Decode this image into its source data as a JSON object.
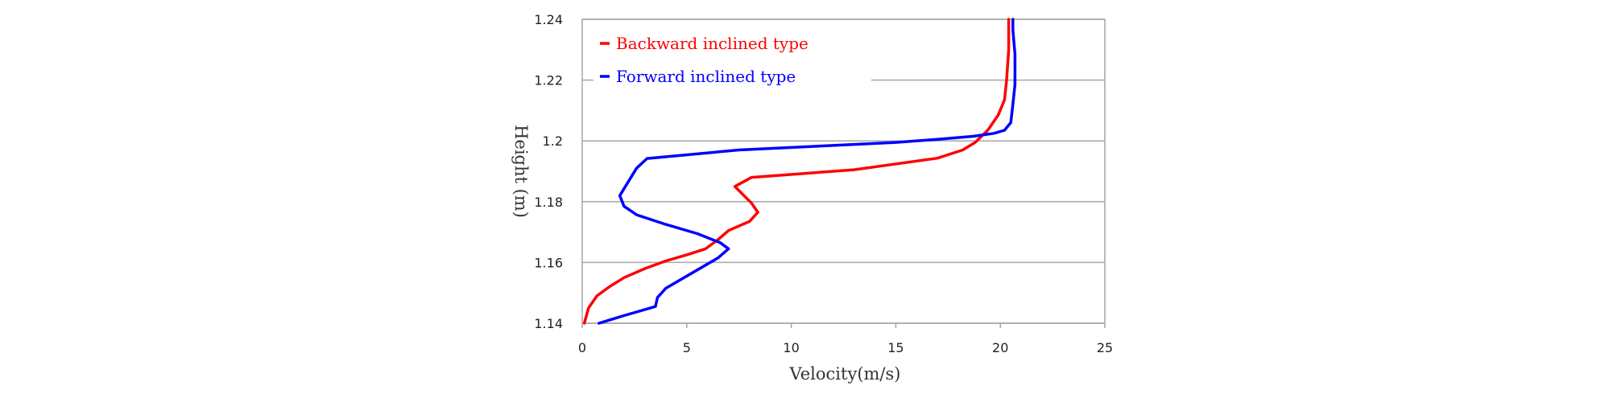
{
  "chart_data": {
    "type": "line",
    "title": "",
    "xlabel": "Velocity(m/s)",
    "ylabel": "Height (m)",
    "xlim": [
      0,
      25
    ],
    "ylim": [
      1.14,
      1.24
    ],
    "x_ticks": [
      "0",
      "5",
      "10",
      "15",
      "20",
      "25"
    ],
    "y_ticks": [
      "1.14",
      "1.16",
      "1.18",
      "1.2",
      "1.22",
      "1.24"
    ],
    "grid": "horizontal",
    "legend_position": "top-left",
    "series": [
      {
        "name": "Backward inclined type",
        "color": "#ff0000",
        "points": [
          [
            0.1,
            1.14
          ],
          [
            0.3,
            1.145
          ],
          [
            0.7,
            1.149
          ],
          [
            1.3,
            1.152
          ],
          [
            2.0,
            1.155
          ],
          [
            3.0,
            1.158
          ],
          [
            4.0,
            1.1605
          ],
          [
            5.0,
            1.1625
          ],
          [
            5.9,
            1.1645
          ],
          [
            6.5,
            1.1675
          ],
          [
            7.0,
            1.1705
          ],
          [
            8.0,
            1.1735
          ],
          [
            8.4,
            1.1765
          ],
          [
            8.1,
            1.1795
          ],
          [
            7.3,
            1.185
          ],
          [
            8.1,
            1.188
          ],
          [
            13.0,
            1.1905
          ],
          [
            17.0,
            1.1943
          ],
          [
            18.2,
            1.197
          ],
          [
            18.8,
            1.1995
          ],
          [
            19.4,
            1.2035
          ],
          [
            19.9,
            1.2085
          ],
          [
            20.2,
            1.2135
          ],
          [
            20.3,
            1.22
          ],
          [
            20.4,
            1.23
          ],
          [
            20.4,
            1.24
          ]
        ]
      },
      {
        "name": "Forward inclined type",
        "color": "#0000ff",
        "points": [
          [
            0.8,
            1.14
          ],
          [
            2.0,
            1.1425
          ],
          [
            3.5,
            1.1455
          ],
          [
            3.6,
            1.1485
          ],
          [
            4.0,
            1.1515
          ],
          [
            6.5,
            1.1615
          ],
          [
            7.0,
            1.1645
          ],
          [
            6.6,
            1.1665
          ],
          [
            5.5,
            1.1695
          ],
          [
            4.0,
            1.1725
          ],
          [
            2.6,
            1.1757
          ],
          [
            2.0,
            1.1785
          ],
          [
            1.8,
            1.182
          ],
          [
            2.2,
            1.1865
          ],
          [
            2.6,
            1.191
          ],
          [
            3.1,
            1.1942
          ],
          [
            7.5,
            1.197
          ],
          [
            12.0,
            1.1985
          ],
          [
            15.0,
            1.1995
          ],
          [
            17.0,
            1.2005
          ],
          [
            18.7,
            1.2015
          ],
          [
            19.7,
            1.2025
          ],
          [
            20.2,
            1.2035
          ],
          [
            20.5,
            1.206
          ],
          [
            20.6,
            1.212
          ],
          [
            20.7,
            1.2185
          ],
          [
            20.7,
            1.2285
          ],
          [
            20.6,
            1.2365
          ],
          [
            20.6,
            1.24
          ]
        ]
      }
    ]
  }
}
